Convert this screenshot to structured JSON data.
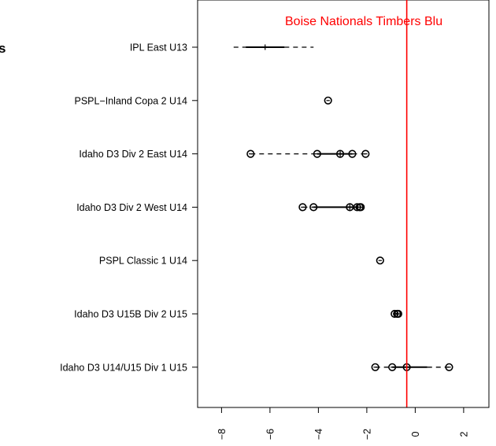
{
  "chart_data": {
    "type": "boxplot",
    "title_fragment": "s",
    "categories": [
      "IPL East U13",
      "PSPL−Inland Copa 2 U14",
      "Idaho D3 Div 2 East U14",
      "Idaho D3 Div 2 West U14",
      "PSPL Classic 1 U14",
      "Idaho D3 U15B Div 2 U15",
      "Idaho D3 U14/U15 Div 1 U15"
    ],
    "boxes": [
      {
        "category": "IPL East U13",
        "min": -7.5,
        "q1": -7.0,
        "median": -6.2,
        "q3": -5.4,
        "max": -4.2,
        "outliers": []
      },
      {
        "category": "PSPL−Inland Copa 2 U14",
        "min": -3.6,
        "q1": -3.6,
        "median": -3.6,
        "q3": -3.6,
        "max": -3.6,
        "outliers": []
      },
      {
        "category": "Idaho D3 Div 2 East U14",
        "min": -6.8,
        "q1": -4.05,
        "median": -3.1,
        "q3": -2.6,
        "max": -2.05,
        "outliers": [],
        "points": [
          -6.8,
          -4.05,
          -3.1,
          -2.6,
          -2.05
        ]
      },
      {
        "category": "Idaho D3 Div 2 West U14",
        "min": -4.65,
        "q1": -4.2,
        "median": -2.7,
        "q3": -2.35,
        "max": -2.25,
        "outliers": [],
        "points": [
          -4.65,
          -4.2,
          -2.7,
          -2.4,
          -2.3,
          -2.25
        ]
      },
      {
        "category": "PSPL Classic 1 U14",
        "min": -1.45,
        "q1": -1.45,
        "median": -1.45,
        "q3": -1.45,
        "max": -1.45,
        "outliers": []
      },
      {
        "category": "Idaho D3 U15B Div 2 U15",
        "min": -0.85,
        "q1": -0.8,
        "median": -0.75,
        "q3": -0.7,
        "max": -0.7,
        "outliers": [],
        "points": [
          -0.85,
          -0.75,
          -0.7
        ]
      },
      {
        "category": "Idaho D3 U14/U15 Div 1 U15",
        "min": -1.65,
        "q1": -0.95,
        "median": -0.35,
        "q3": 0.5,
        "max": 1.4,
        "outliers": [],
        "points": [
          -1.65,
          -0.95,
          -0.35,
          1.4
        ]
      }
    ],
    "x_ticks": [
      -8,
      -6,
      -4,
      -2,
      0,
      2
    ],
    "x_tick_labels": [
      "−8",
      "−6",
      "−4",
      "−2",
      "0",
      "2"
    ],
    "xlim": [
      -9.0,
      2.9
    ],
    "reference_line": {
      "value": -0.35,
      "label": "Boise Nationals Timbers Blu",
      "color": "#ff0000"
    },
    "grid": false
  }
}
